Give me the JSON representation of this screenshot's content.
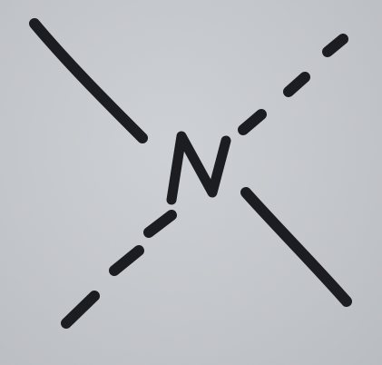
{
  "center_atom": {
    "symbol": "N"
  },
  "bonds": [
    {
      "name": "solid-bond-upper-left",
      "style": "solid"
    },
    {
      "name": "solid-bond-lower-right",
      "style": "solid"
    },
    {
      "name": "dashed-bond-upper-right",
      "style": "dashed"
    },
    {
      "name": "dashed-bond-lower-left",
      "style": "dashed"
    }
  ],
  "colors": {
    "ink": "#1c1d20",
    "paper": "#c6c9cd"
  }
}
